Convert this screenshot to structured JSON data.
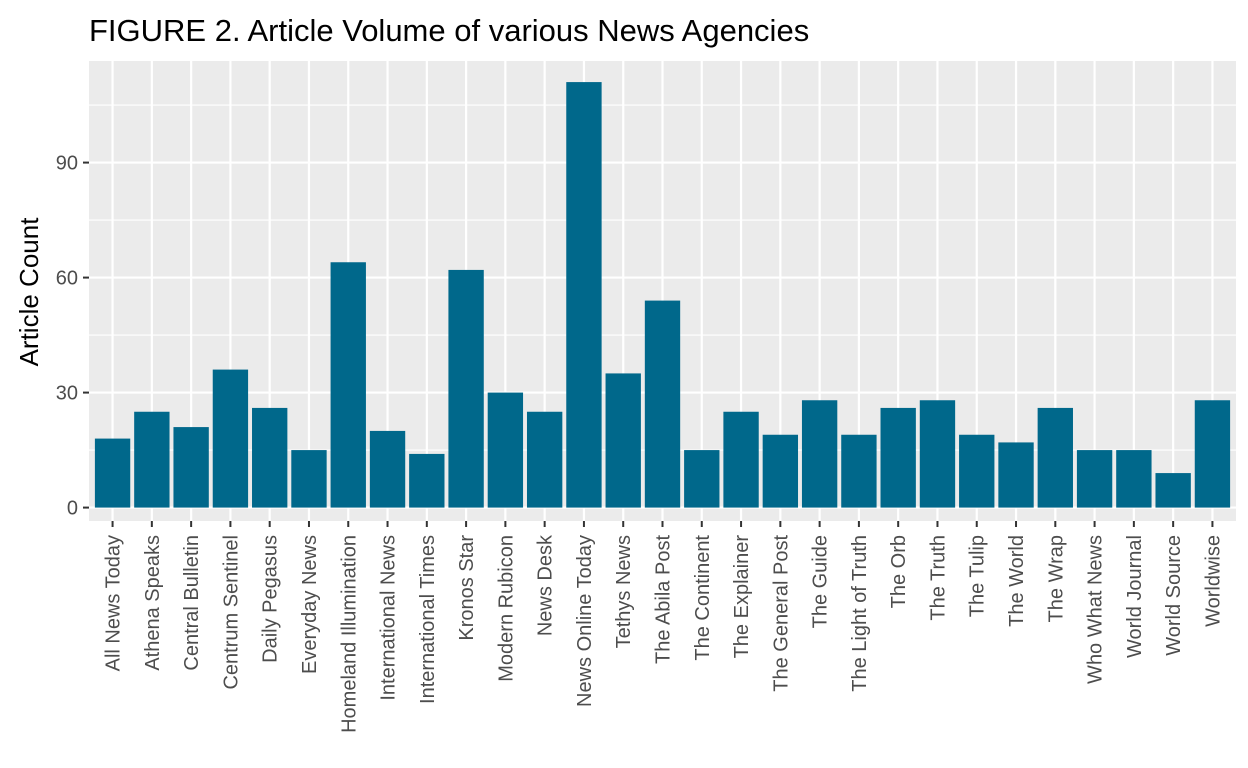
{
  "chart_data": {
    "type": "bar",
    "title": "FIGURE 2. Article Volume of various News Agencies",
    "xlabel": "",
    "ylabel": "Article Count",
    "categories": [
      "All News Today",
      "Athena Speaks",
      "Central Bulletin",
      "Centrum Sentinel",
      "Daily Pegasus",
      "Everyday News",
      "Homeland Illumination",
      "International News",
      "International Times",
      "Kronos Star",
      "Modern Rubicon",
      "News Desk",
      "News Online Today",
      "Tethys News",
      "The Abila Post",
      "The Continent",
      "The Explainer",
      "The General Post",
      "The Guide",
      "The Light of Truth",
      "The Orb",
      "The Truth",
      "The Tulip",
      "The World",
      "The Wrap",
      "Who What News",
      "World Journal",
      "World Source",
      "Worldwise"
    ],
    "values": [
      18,
      25,
      21,
      36,
      26,
      15,
      64,
      20,
      14,
      62,
      30,
      25,
      111,
      35,
      54,
      15,
      25,
      19,
      28,
      19,
      26,
      28,
      19,
      17,
      26,
      15,
      15,
      9,
      28
    ],
    "ylim": [
      -3.5,
      116.5
    ],
    "yticks": [
      0,
      30,
      60,
      90
    ],
    "grid": true,
    "bar_color": "#00688b",
    "panel_background": "#ebebeb",
    "grid_color": "#ffffff"
  }
}
